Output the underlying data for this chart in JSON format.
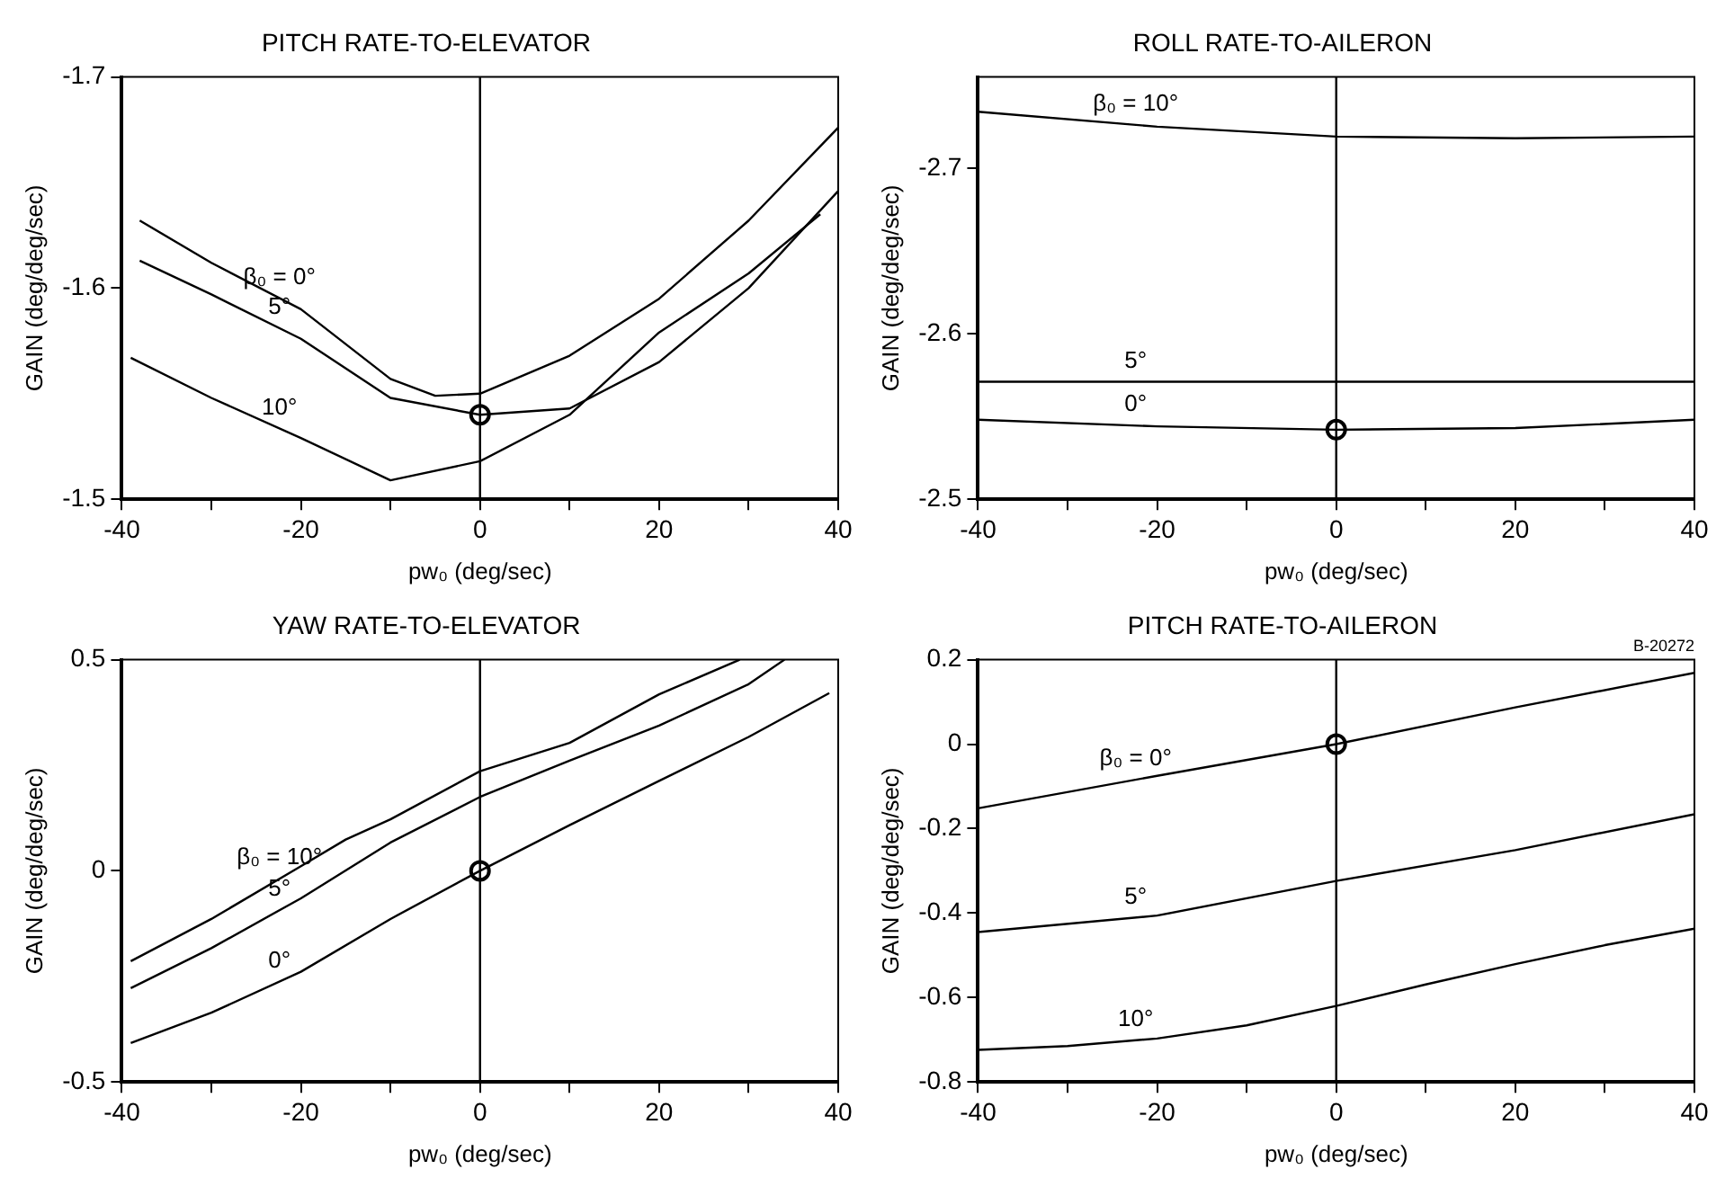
{
  "chart_data": [
    {
      "type": "line",
      "title": "PITCH RATE-TO-ELEVATOR",
      "xlabel": "pw₀ (deg/sec)",
      "ylabel": "GAIN (deg/deg/sec)",
      "xlim": [
        -40,
        40
      ],
      "xticks": [
        -40,
        {
          "value": -30,
          "label": null
        },
        -20,
        {
          "value": -10,
          "label": null
        },
        0,
        {
          "value": 10,
          "label": null
        },
        20,
        {
          "value": 30,
          "label": null
        },
        40
      ],
      "ylim": [
        -1.5,
        -1.7
      ],
      "yticks": [
        -1.7,
        -1.6,
        -1.5
      ],
      "line_style": "solid",
      "ref_lines": [
        {
          "axis": "x",
          "value": 0
        }
      ],
      "series": [
        {
          "type": "line",
          "name": "β₀ = 0°",
          "color": "#000000",
          "x": [
            -38,
            -30,
            -20,
            -10,
            -5,
            0,
            10,
            20,
            30,
            40
          ],
          "values": [
            -1.632,
            -1.612,
            -1.59,
            -1.557,
            -1.549,
            -1.55,
            -1.568,
            -1.595,
            -1.632,
            -1.676
          ]
        },
        {
          "type": "line",
          "name": "5°",
          "color": "#000000",
          "x": [
            -38,
            -30,
            -20,
            -10,
            0,
            10,
            20,
            30,
            40
          ],
          "values": [
            -1.613,
            -1.597,
            -1.576,
            -1.548,
            -1.54,
            -1.543,
            -1.565,
            -1.6,
            -1.646
          ]
        },
        {
          "type": "line",
          "name": "10°",
          "color": "#000000",
          "x": [
            -39,
            -30,
            -20,
            -10,
            0,
            10,
            20,
            30,
            38
          ],
          "values": [
            -1.567,
            -1.548,
            -1.529,
            -1.509,
            -1.518,
            -1.54,
            -1.579,
            -1.607,
            -1.635
          ]
        },
        {
          "type": "scatter",
          "marker": "circle",
          "color": "#000000",
          "x": [
            0
          ],
          "values": [
            -1.54
          ]
        }
      ],
      "legend": false
    },
    {
      "type": "line",
      "title": "ROLL RATE-TO-AILERON",
      "xlabel": "pw₀ (deg/sec)",
      "ylabel": "GAIN (deg/deg/sec)",
      "xlim": [
        -40,
        40
      ],
      "xticks": [
        -40,
        {
          "value": -30,
          "label": null
        },
        -20,
        {
          "value": -10,
          "label": null
        },
        0,
        {
          "value": 10,
          "label": null
        },
        20,
        {
          "value": 30,
          "label": null
        },
        40
      ],
      "ylim": [
        -2.5,
        -2.755
      ],
      "yticks": [
        -2.7,
        -2.6,
        -2.5
      ],
      "line_style": "solid",
      "ref_lines": [
        {
          "axis": "x",
          "value": 0
        }
      ],
      "series": [
        {
          "type": "line",
          "name": "β₀ = 10°",
          "color": "#000000",
          "x": [
            -40,
            -20,
            0,
            20,
            40
          ],
          "values": [
            -2.734,
            -2.725,
            -2.719,
            -2.718,
            -2.719
          ]
        },
        {
          "type": "line",
          "name": "5°",
          "color": "#000000",
          "x": [
            -40,
            0,
            40
          ],
          "values": [
            -2.571,
            -2.571,
            -2.571
          ]
        },
        {
          "type": "line",
          "name": "0°",
          "color": "#000000",
          "x": [
            -40,
            -20,
            0,
            20,
            40
          ],
          "values": [
            -2.548,
            -2.544,
            -2.542,
            -2.543,
            -2.548
          ]
        },
        {
          "type": "scatter",
          "marker": "circle",
          "color": "#000000",
          "x": [
            0
          ],
          "values": [
            -2.542
          ]
        }
      ],
      "legend": false
    },
    {
      "type": "line",
      "title": "YAW RATE-TO-ELEVATOR",
      "xlabel": "pw₀ (deg/sec)",
      "ylabel": "GAIN (deg/deg/sec)",
      "xlim": [
        -40,
        40
      ],
      "xticks": [
        -40,
        {
          "value": -30,
          "label": null
        },
        -20,
        {
          "value": -10,
          "label": null
        },
        0,
        {
          "value": 10,
          "label": null
        },
        20,
        {
          "value": 30,
          "label": null
        },
        40
      ],
      "ylim": [
        -0.5,
        0.5
      ],
      "yticks": [
        -0.5,
        0,
        0.5
      ],
      "line_style": "solid",
      "ref_lines": [
        {
          "axis": "x",
          "value": 0
        }
      ],
      "series": [
        {
          "type": "line",
          "name": "β₀ = 10°",
          "color": "#000000",
          "x": [
            -39,
            -30,
            -20,
            -15,
            -10,
            0,
            10,
            20,
            29
          ],
          "values": [
            -0.214,
            -0.114,
            0.011,
            0.074,
            0.122,
            0.236,
            0.303,
            0.418,
            0.5
          ]
        },
        {
          "type": "line",
          "name": "5°",
          "color": "#000000",
          "x": [
            -39,
            -30,
            -20,
            -10,
            0,
            10,
            20,
            30,
            34
          ],
          "values": [
            -0.278,
            -0.183,
            -0.065,
            0.067,
            0.175,
            0.261,
            0.344,
            0.442,
            0.5
          ]
        },
        {
          "type": "line",
          "name": "0°",
          "color": "#000000",
          "x": [
            -39,
            -30,
            -20,
            -10,
            0,
            10,
            20,
            30,
            39
          ],
          "values": [
            -0.408,
            -0.336,
            -0.239,
            -0.114,
            0,
            0.108,
            0.213,
            0.317,
            0.421
          ]
        },
        {
          "type": "scatter",
          "marker": "circle",
          "color": "#000000",
          "x": [
            0
          ],
          "values": [
            0
          ]
        }
      ],
      "legend": false
    },
    {
      "type": "line",
      "title": "PITCH RATE-TO-AILERON",
      "xlabel": "pw₀ (deg/sec)",
      "ylabel": "GAIN (deg/deg/sec)",
      "xlim": [
        -40,
        40
      ],
      "xticks": [
        -40,
        {
          "value": -30,
          "label": null
        },
        -20,
        {
          "value": -10,
          "label": null
        },
        0,
        {
          "value": 10,
          "label": null
        },
        20,
        {
          "value": 30,
          "label": null
        },
        40
      ],
      "ylim": [
        -0.8,
        0.2
      ],
      "yticks": [
        -0.8,
        -0.6,
        -0.4,
        -0.2,
        0,
        0.2
      ],
      "line_style": "solid",
      "ref_lines": [
        {
          "axis": "x",
          "value": 0
        }
      ],
      "series": [
        {
          "type": "line",
          "name": "β₀ = 0°",
          "color": "#000000",
          "x": [
            -40,
            -20,
            0,
            20,
            40
          ],
          "values": [
            -0.152,
            -0.075,
            0,
            0.087,
            0.169
          ]
        },
        {
          "type": "line",
          "name": "5°",
          "color": "#000000",
          "x": [
            -40,
            -20,
            0,
            20,
            40
          ],
          "values": [
            -0.445,
            -0.406,
            -0.324,
            -0.251,
            -0.166
          ]
        },
        {
          "type": "line",
          "name": "10°",
          "color": "#000000",
          "x": [
            -40,
            -30,
            -20,
            -10,
            0,
            10,
            20,
            30,
            40
          ],
          "values": [
            -0.724,
            -0.715,
            -0.697,
            -0.666,
            -0.62,
            -0.569,
            -0.521,
            -0.476,
            -0.437
          ]
        },
        {
          "type": "scatter",
          "marker": "circle",
          "color": "#000000",
          "x": [
            0
          ],
          "values": [
            0
          ]
        }
      ],
      "annotations": [
        "B-20272"
      ]
    }
  ]
}
